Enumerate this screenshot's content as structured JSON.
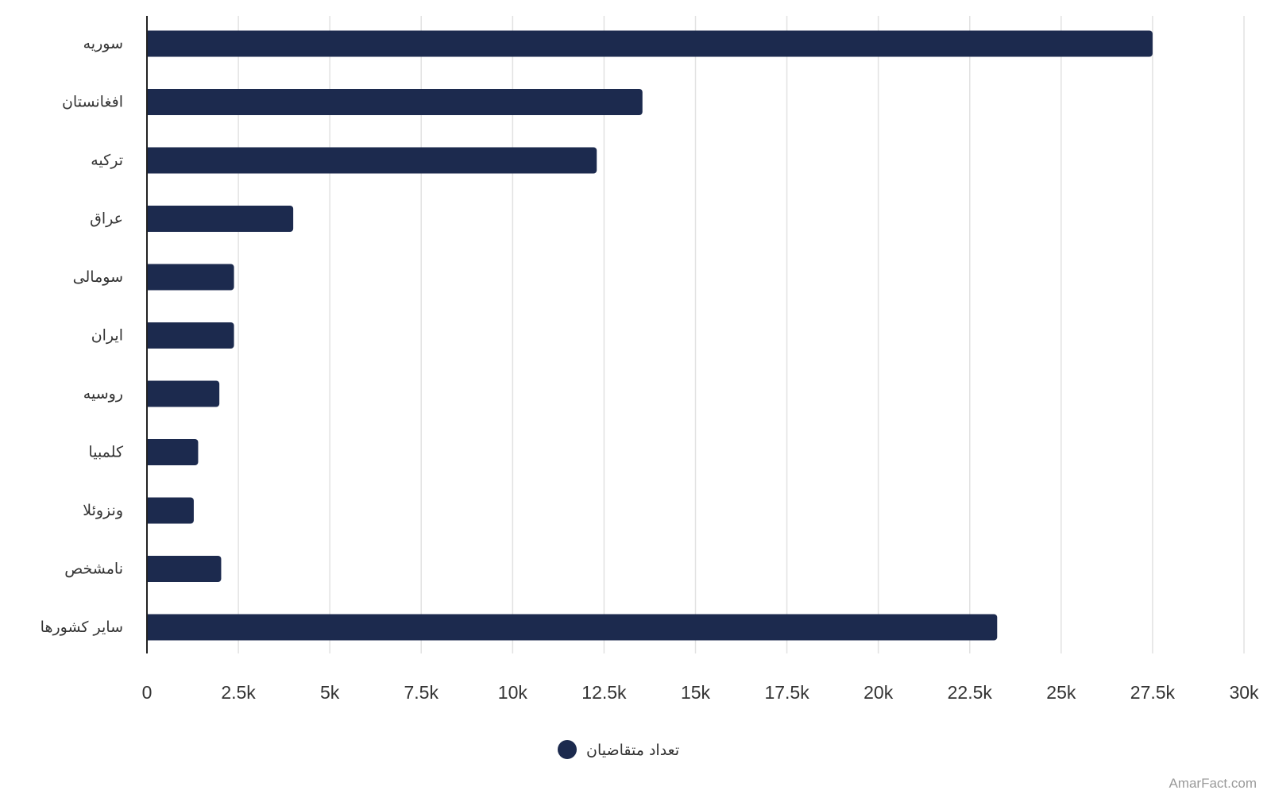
{
  "chart_data": {
    "type": "bar",
    "orientation": "horizontal",
    "categories": [
      "سوریه",
      "افغانستان",
      "ترکیه",
      "عراق",
      "سومالی",
      "ایران",
      "روسیه",
      "کلمبیا",
      "ونزوئلا",
      "نامشخص",
      "سایر کشورها"
    ],
    "series": [
      {
        "name": "تعداد متقاضیان",
        "color": "#1c2a4e",
        "values": [
          27500,
          13550,
          12300,
          4000,
          2380,
          2380,
          1980,
          1400,
          1280,
          2030,
          23250
        ]
      }
    ],
    "xlim": [
      0,
      30000
    ],
    "xticks": [
      0,
      2500,
      5000,
      7500,
      10000,
      12500,
      15000,
      17500,
      20000,
      22500,
      25000,
      27500,
      30000
    ],
    "xtick_labels": [
      "0",
      "2.5k",
      "5k",
      "7.5k",
      "10k",
      "12.5k",
      "15k",
      "17.5k",
      "20k",
      "22.5k",
      "25k",
      "27.5k",
      "30k"
    ],
    "grid": "vertical",
    "legend_position": "bottom-center"
  },
  "watermark": "AmarFact.com",
  "colors": {
    "bar": "#1c2a4e",
    "grid": "#e2e2e2",
    "axis": "#222222",
    "text": "#333333"
  }
}
